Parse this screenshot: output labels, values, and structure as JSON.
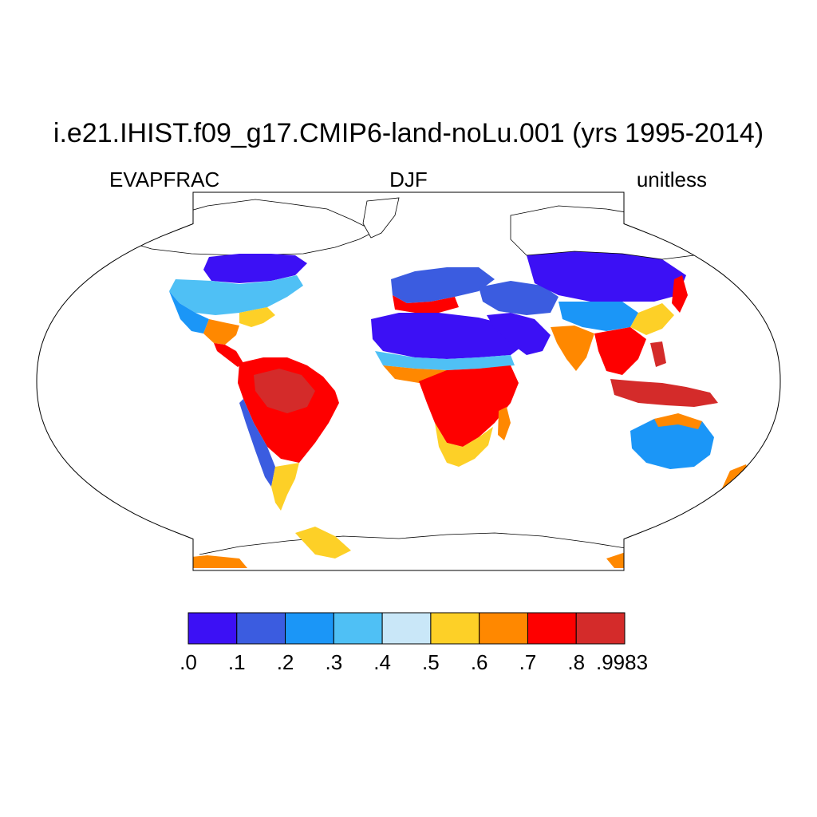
{
  "title": "i.e21.IHIST.f09_g17.CMIP6-land-noLu.001 (yrs 1995-2014)",
  "left_label": "EVAPFRAC",
  "center_label": "DJF",
  "right_label": "unitless",
  "colorbar": {
    "colors": [
      "#3c10f5",
      "#3b5ce0",
      "#1b96f7",
      "#4fc0f5",
      "#c9e7f8",
      "#fdd027",
      "#ff8800",
      "#fe0000",
      "#d42b2a"
    ],
    "tick_labels": [
      ".0",
      ".1",
      ".2",
      ".3",
      ".4",
      ".5",
      ".6",
      ".7",
      ".8",
      ".9983"
    ]
  },
  "map": {
    "projection": "robinson",
    "ocean_color": "#ffffff",
    "outline_color": "#000000"
  }
}
